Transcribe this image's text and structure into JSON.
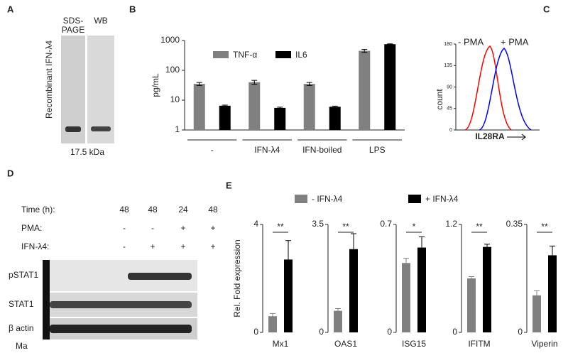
{
  "figure": {
    "panel_labels": [
      "A",
      "B",
      "C",
      "D",
      "E"
    ],
    "panel_A": {
      "side_label": "Recombinant IFN-λ4",
      "lanes": [
        "SDS-",
        "PAGE",
        "WB"
      ],
      "size": "17.5 kDa"
    },
    "panel_D": {
      "conditions": [
        {
          "label": "Time (h):",
          "cells": [
            "48",
            "48",
            "24",
            "48"
          ]
        },
        {
          "label": "PMA:",
          "cells": [
            "-",
            "-",
            "+",
            "+"
          ]
        },
        {
          "label": "IFN-λ4:",
          "cells": [
            "-",
            "+",
            "+",
            "+"
          ]
        }
      ],
      "blots": [
        "pSTAT1",
        "STAT1",
        "β actin"
      ],
      "marker": "Ma"
    },
    "panel_E": {
      "ylabel": "Rel. Fold expression",
      "legend": [
        {
          "name": "- IFN-λ4",
          "color": "#808080"
        },
        {
          "name": "+ IFN-λ4",
          "color": "#000000"
        }
      ]
    }
  },
  "chart_data": [
    {
      "type": "bar",
      "ylabel": "pg/mL",
      "log_scale": true,
      "categories": [
        "-",
        "IFN-λ4",
        "IFN-boiled",
        "LPS"
      ],
      "series": [
        {
          "name": "TNF-α",
          "color": "#808080",
          "values": [
            35,
            40,
            35,
            450
          ],
          "errors": [
            4,
            6,
            4,
            50
          ]
        },
        {
          "name": "IL6",
          "color": "#000000",
          "values": [
            6.5,
            5.5,
            6,
            750
          ],
          "errors": [
            0.3,
            0.3,
            0.3,
            20
          ]
        }
      ],
      "ylim": [
        1,
        1000
      ],
      "yticks": [
        1,
        10,
        100,
        1000
      ]
    },
    {
      "type": "flow",
      "ylabel": "count",
      "xlabel": "IL28RA",
      "series": [
        {
          "name": "- PMA",
          "color": "#ff0000"
        },
        {
          "name": "+ PMA",
          "color": "#0000ff"
        }
      ],
      "ylim": [
        0,
        180
      ],
      "yticks": [
        0,
        45,
        90,
        135,
        180
      ]
    },
    {
      "type": "gene",
      "xlabel": "Mx1",
      "values": [
        0.6,
        2.7
      ],
      "errors": [
        0.1,
        0.7
      ],
      "annotation": "**",
      "ylim": [
        0,
        4
      ],
      "yticks": [
        0,
        4
      ]
    },
    {
      "type": "gene",
      "xlabel": "OAS1",
      "values": [
        0.7,
        2.7
      ],
      "errors": [
        0.07,
        0.5
      ],
      "annotation": "**",
      "ylim": [
        0,
        3.5
      ],
      "yticks": [
        0,
        3.5
      ]
    },
    {
      "type": "gene",
      "xlabel": "ISG15",
      "values": [
        0.45,
        0.55
      ],
      "errors": [
        0.03,
        0.07
      ],
      "annotation": "*",
      "ylim": [
        0,
        0.7
      ],
      "yticks": [
        0,
        0.7
      ]
    },
    {
      "type": "gene",
      "xlabel": "IFITM",
      "values": [
        0.6,
        0.95
      ],
      "errors": [
        0.02,
        0.03
      ],
      "annotation": "**",
      "ylim": [
        0,
        1.2
      ],
      "yticks": [
        0,
        1.2
      ]
    },
    {
      "type": "gene",
      "xlabel": "Viperin",
      "values": [
        0.12,
        0.25
      ],
      "errors": [
        0.015,
        0.03
      ],
      "annotation": "**",
      "ylim": [
        0,
        0.35
      ],
      "yticks": [
        0,
        0.35
      ]
    }
  ]
}
